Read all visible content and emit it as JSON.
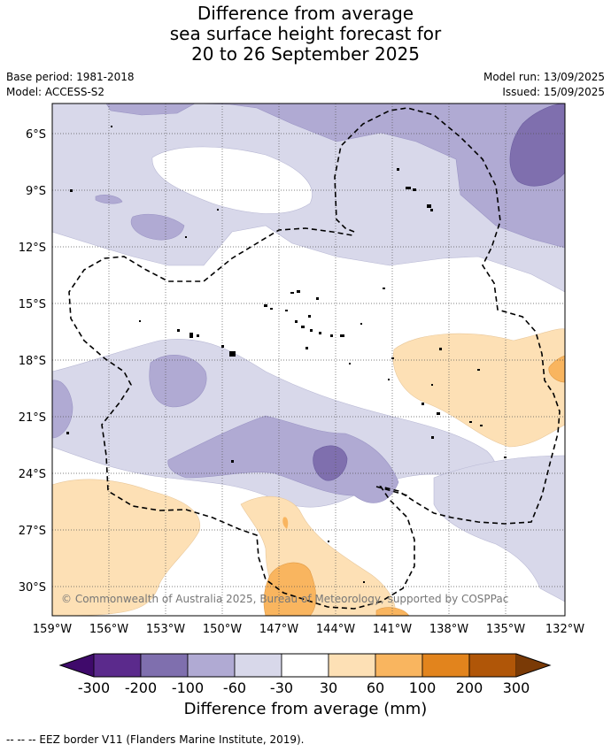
{
  "title": {
    "line1": "Difference from average",
    "line2": "sea surface height forecast for",
    "line3": "20 to 26 September 2025"
  },
  "meta_left": {
    "base_period": "Base period: 1981-2018",
    "model": "Model: ACCESS-S2"
  },
  "meta_right": {
    "model_run": "Model run: 13/09/2025",
    "issued": "Issued: 15/09/2025"
  },
  "map": {
    "lat_labels": [
      "6°S",
      "9°S",
      "12°S",
      "15°S",
      "18°S",
      "21°S",
      "24°S",
      "27°S",
      "30°S"
    ],
    "lon_labels": [
      "159°W",
      "156°W",
      "153°W",
      "150°W",
      "147°W",
      "144°W",
      "141°W",
      "138°W",
      "135°W",
      "132°W"
    ],
    "copyright": "© Commonwealth of Australia 2025, Bureau of Meteorology, supported by COSPPac"
  },
  "colorbar": {
    "ticks": [
      "-300",
      "-200",
      "-100",
      "-60",
      "-30",
      "30",
      "60",
      "100",
      "200",
      "300"
    ],
    "colors": [
      "#3f0a6b",
      "#5b2a8c",
      "#7f6fae",
      "#b0aad3",
      "#d8d8ea",
      "#ffffff",
      "#fde0b5",
      "#f9b55f",
      "#e2841d",
      "#b05608",
      "#7a3a06"
    ],
    "title": "Difference from average (mm)"
  },
  "footer": "--  --  -- EEZ border V11 (Flanders Marine Institute, 2019)."
}
